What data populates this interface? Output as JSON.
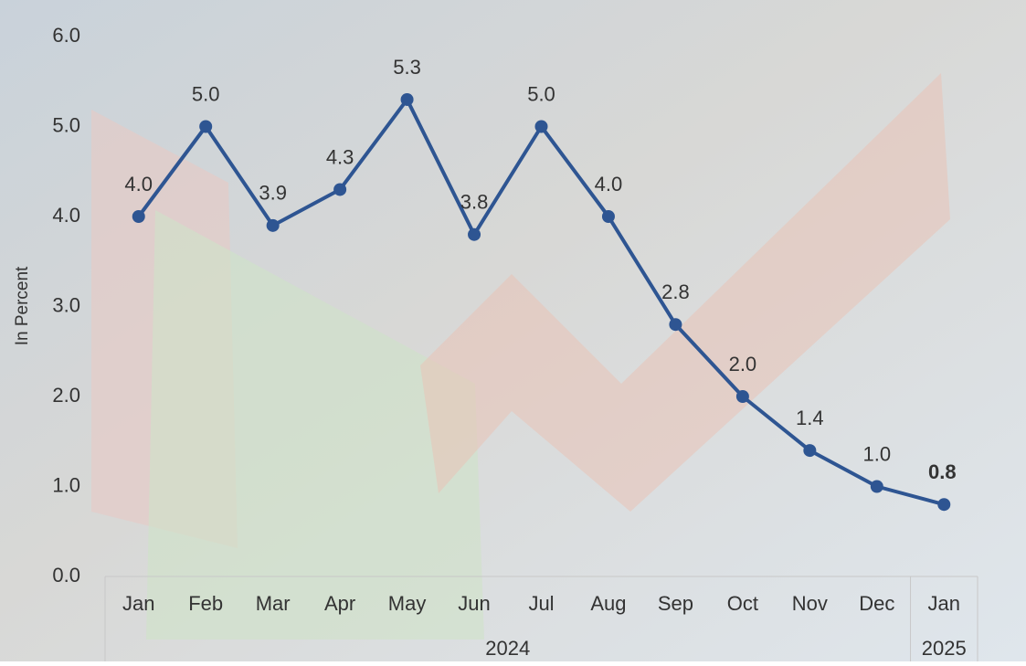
{
  "chart_data": {
    "type": "line",
    "y_label": "In Percent",
    "groups": [
      {
        "name": "2024",
        "categories": [
          "Jan",
          "Feb",
          "Mar",
          "Apr",
          "May",
          "Jun",
          "Jul",
          "Aug",
          "Sep",
          "Oct",
          "Nov",
          "Dec"
        ]
      },
      {
        "name": "2025",
        "categories": [
          "Jan"
        ]
      }
    ],
    "series": [
      {
        "color": "#2e5592",
        "values": [
          4.0,
          5.0,
          3.9,
          4.3,
          5.3,
          3.8,
          5.0,
          4.0,
          2.8,
          2.0,
          1.4,
          1.0,
          0.8
        ],
        "value_labels": [
          "4.0",
          "5.0",
          "3.9",
          "4.3",
          "5.3",
          "3.8",
          "5.0",
          "4.0",
          "2.8",
          "2.0",
          "1.4",
          "1.0",
          "0.8"
        ]
      }
    ],
    "highlight_last": true,
    "ylim": [
      0,
      6
    ],
    "yticks": [
      {
        "value": 0,
        "label": "0.0"
      },
      {
        "value": 1,
        "label": "1.0"
      },
      {
        "value": 2,
        "label": "2.0"
      },
      {
        "value": 3,
        "label": "3.0"
      },
      {
        "value": 4,
        "label": "4.0"
      },
      {
        "value": 5,
        "label": "5.0"
      },
      {
        "value": 6,
        "label": "6.0"
      }
    ]
  }
}
